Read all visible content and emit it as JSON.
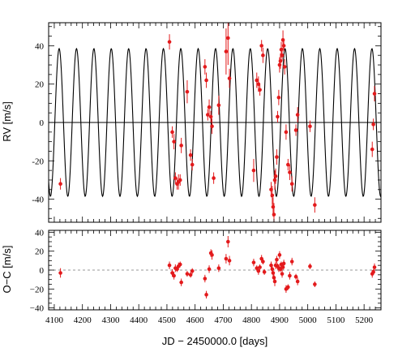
{
  "chart_data": [
    {
      "type": "scatter",
      "panel": "rv",
      "title": "",
      "xlabel": "",
      "ylabel": "RV [m/s]",
      "xlim": [
        4080,
        5260
      ],
      "ylim": [
        -52,
        52
      ],
      "x_ticks": [
        4100,
        4200,
        4300,
        4400,
        4500,
        4600,
        4700,
        4800,
        4900,
        5000,
        5100,
        5200
      ],
      "y_ticks": [
        -40,
        -20,
        0,
        20,
        40
      ],
      "y_tick_labels": [
        "-40",
        "-20",
        "0",
        "20",
        "40"
      ],
      "grid": false,
      "zero_line": true,
      "model": {
        "type": "sinusoid",
        "amplitude": 38.5,
        "period": 61.7,
        "t0": 4117.3,
        "offset": 0,
        "color": "#000000"
      },
      "series": [
        {
          "marker_color": "#e31a1c",
          "points": [
            {
              "x": 4122,
              "y": -32,
              "err": 3
            },
            {
              "x": 4509,
              "y": 42,
              "err": 4
            },
            {
              "x": 4519,
              "y": -5,
              "err": 3
            },
            {
              "x": 4525,
              "y": -10,
              "err": 4
            },
            {
              "x": 4530,
              "y": -29,
              "err": 3
            },
            {
              "x": 4536,
              "y": -32,
              "err": 3
            },
            {
              "x": 4541,
              "y": -31,
              "err": 4
            },
            {
              "x": 4547,
              "y": -30,
              "err": 3
            },
            {
              "x": 4551,
              "y": -12,
              "err": 4
            },
            {
              "x": 4572,
              "y": 16,
              "err": 6
            },
            {
              "x": 4584,
              "y": -17,
              "err": 3
            },
            {
              "x": 4590,
              "y": -22,
              "err": 3
            },
            {
              "x": 4635,
              "y": 29,
              "err": 4
            },
            {
              "x": 4640,
              "y": 22,
              "err": 4
            },
            {
              "x": 4645,
              "y": 4,
              "err": 3
            },
            {
              "x": 4650,
              "y": 8,
              "err": 4
            },
            {
              "x": 4656,
              "y": 3,
              "err": 3
            },
            {
              "x": 4660,
              "y": -2,
              "err": 4
            },
            {
              "x": 4666,
              "y": -29,
              "err": 3
            },
            {
              "x": 4684,
              "y": 9,
              "err": 5
            },
            {
              "x": 4710,
              "y": 37,
              "err": 12
            },
            {
              "x": 4717,
              "y": 44,
              "err": 14
            },
            {
              "x": 4722,
              "y": 23,
              "err": 5
            },
            {
              "x": 4808,
              "y": -25,
              "err": 6
            },
            {
              "x": 4819,
              "y": 22,
              "err": 4
            },
            {
              "x": 4825,
              "y": 20,
              "err": 4
            },
            {
              "x": 4830,
              "y": 17,
              "err": 3
            },
            {
              "x": 4836,
              "y": 40,
              "err": 3
            },
            {
              "x": 4841,
              "y": 35,
              "err": 4
            },
            {
              "x": 4870,
              "y": -35,
              "err": 4
            },
            {
              "x": 4874,
              "y": -38,
              "err": 5
            },
            {
              "x": 4877,
              "y": -44,
              "err": 5
            },
            {
              "x": 4880,
              "y": -48,
              "err": 6
            },
            {
              "x": 4883,
              "y": -30,
              "err": 5
            },
            {
              "x": 4886,
              "y": -28,
              "err": 4
            },
            {
              "x": 4890,
              "y": -18,
              "err": 4
            },
            {
              "x": 4893,
              "y": 3,
              "err": 3
            },
            {
              "x": 4897,
              "y": 13,
              "err": 4
            },
            {
              "x": 4900,
              "y": 30,
              "err": 4
            },
            {
              "x": 4903,
              "y": 32,
              "err": 4
            },
            {
              "x": 4906,
              "y": 38,
              "err": 4
            },
            {
              "x": 4909,
              "y": 35,
              "err": 3
            },
            {
              "x": 4912,
              "y": 43,
              "err": 5
            },
            {
              "x": 4915,
              "y": 40,
              "err": 3
            },
            {
              "x": 4918,
              "y": 29,
              "err": 4
            },
            {
              "x": 4923,
              "y": -5,
              "err": 4
            },
            {
              "x": 4930,
              "y": -22,
              "err": 3
            },
            {
              "x": 4936,
              "y": -26,
              "err": 4
            },
            {
              "x": 4944,
              "y": -32,
              "err": 4
            },
            {
              "x": 4958,
              "y": -4,
              "err": 3
            },
            {
              "x": 4964,
              "y": 4,
              "err": 4
            },
            {
              "x": 5008,
              "y": -2,
              "err": 3
            },
            {
              "x": 5025,
              "y": -43,
              "err": 4
            },
            {
              "x": 5229,
              "y": -14,
              "err": 4
            },
            {
              "x": 5233,
              "y": -1,
              "err": 3
            },
            {
              "x": 5237,
              "y": 15,
              "err": 4
            }
          ]
        }
      ]
    },
    {
      "type": "scatter",
      "panel": "residuals",
      "title": "",
      "xlabel": "JD − 2450000.0 [days]",
      "ylabel": "O−C [m/s]",
      "xlim": [
        4080,
        5260
      ],
      "ylim": [
        -42,
        42
      ],
      "x_ticks": [
        4100,
        4200,
        4300,
        4400,
        4500,
        4600,
        4700,
        4800,
        4900,
        5000,
        5100,
        5200
      ],
      "x_tick_labels": [
        "4100",
        "4200",
        "4300",
        "4400",
        "4500",
        "4600",
        "4700",
        "4800",
        "4900",
        "5000",
        "5100",
        "5200"
      ],
      "y_ticks": [
        -40,
        -20,
        0,
        20,
        40
      ],
      "y_tick_labels": [
        "−40",
        "−20",
        "0",
        "20",
        "40"
      ],
      "grid": false,
      "reference_line": {
        "y": 0,
        "style": "dashed"
      },
      "series": [
        {
          "marker_color": "#e31a1c",
          "points": [
            {
              "x": 4122,
              "y": -3,
              "err": 5
            },
            {
              "x": 4509,
              "y": 5,
              "err": 4
            },
            {
              "x": 4519,
              "y": -3,
              "err": 4
            },
            {
              "x": 4525,
              "y": -6,
              "err": 4
            },
            {
              "x": 4530,
              "y": 2,
              "err": 4
            },
            {
              "x": 4536,
              "y": 1,
              "err": 3
            },
            {
              "x": 4541,
              "y": 4,
              "err": 4
            },
            {
              "x": 4547,
              "y": 6,
              "err": 3
            },
            {
              "x": 4551,
              "y": -13,
              "err": 4
            },
            {
              "x": 4572,
              "y": -4,
              "err": 3
            },
            {
              "x": 4584,
              "y": -5,
              "err": 3
            },
            {
              "x": 4590,
              "y": -1,
              "err": 3
            },
            {
              "x": 4635,
              "y": -9,
              "err": 4
            },
            {
              "x": 4640,
              "y": -26,
              "err": 4
            },
            {
              "x": 4650,
              "y": 1,
              "err": 4
            },
            {
              "x": 4656,
              "y": 18,
              "err": 4
            },
            {
              "x": 4660,
              "y": 16,
              "err": 5
            },
            {
              "x": 4684,
              "y": 2,
              "err": 4
            },
            {
              "x": 4710,
              "y": 12,
              "err": 5
            },
            {
              "x": 4717,
              "y": 30,
              "err": 6
            },
            {
              "x": 4722,
              "y": 10,
              "err": 5
            },
            {
              "x": 4808,
              "y": 8,
              "err": 4
            },
            {
              "x": 4819,
              "y": 2,
              "err": 3
            },
            {
              "x": 4825,
              "y": -1,
              "err": 4
            },
            {
              "x": 4830,
              "y": 3,
              "err": 3
            },
            {
              "x": 4836,
              "y": 12,
              "err": 4
            },
            {
              "x": 4841,
              "y": 9,
              "err": 3
            },
            {
              "x": 4846,
              "y": -2,
              "err": 3
            },
            {
              "x": 4870,
              "y": 5,
              "err": 4
            },
            {
              "x": 4874,
              "y": 1,
              "err": 4
            },
            {
              "x": 4877,
              "y": -3,
              "err": 4
            },
            {
              "x": 4880,
              "y": -8,
              "err": 4
            },
            {
              "x": 4883,
              "y": -12,
              "err": 5
            },
            {
              "x": 4886,
              "y": 5,
              "err": 4
            },
            {
              "x": 4890,
              "y": 11,
              "err": 4
            },
            {
              "x": 4893,
              "y": 4,
              "err": 3
            },
            {
              "x": 4897,
              "y": 2,
              "err": 4
            },
            {
              "x": 4900,
              "y": 16,
              "err": 4
            },
            {
              "x": 4903,
              "y": 1,
              "err": 3
            },
            {
              "x": 4906,
              "y": 6,
              "err": 3
            },
            {
              "x": 4909,
              "y": -4,
              "err": 4
            },
            {
              "x": 4912,
              "y": 3,
              "err": 3
            },
            {
              "x": 4915,
              "y": 7,
              "err": 4
            },
            {
              "x": 4923,
              "y": -20,
              "err": 4
            },
            {
              "x": 4930,
              "y": -18,
              "err": 3
            },
            {
              "x": 4936,
              "y": -6,
              "err": 4
            },
            {
              "x": 4944,
              "y": 9,
              "err": 4
            },
            {
              "x": 4958,
              "y": -7,
              "err": 3
            },
            {
              "x": 4964,
              "y": -12,
              "err": 4
            },
            {
              "x": 5008,
              "y": 4,
              "err": 3
            },
            {
              "x": 5025,
              "y": -15,
              "err": 3
            },
            {
              "x": 5229,
              "y": -4,
              "err": 4
            },
            {
              "x": 5233,
              "y": -2,
              "err": 3
            },
            {
              "x": 5237,
              "y": 3,
              "err": 4
            }
          ]
        }
      ]
    }
  ]
}
